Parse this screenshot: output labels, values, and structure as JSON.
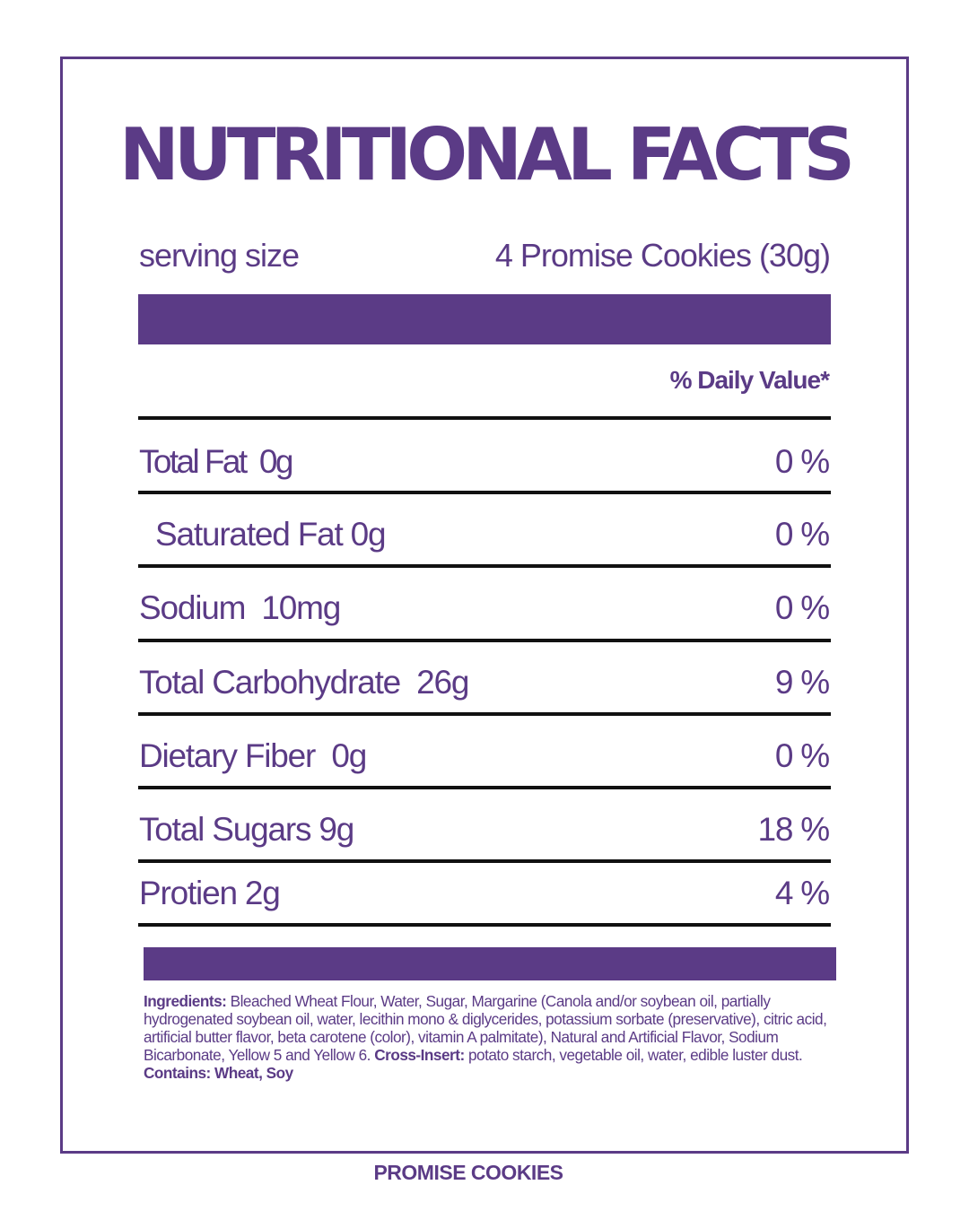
{
  "title": "NUTRITIONAL FACTS",
  "serving": {
    "label": "serving size",
    "value": "4 Promise Cookies (30g)"
  },
  "daily_value_header": "% Daily Value*",
  "nutrients": [
    {
      "name": "Total Fat  0g",
      "percent": "0 %"
    },
    {
      "name": "Saturated Fat 0g",
      "percent": "0 %"
    },
    {
      "name": "Sodium  10mg",
      "percent": "0 %"
    },
    {
      "name": "Total Carbohydrate  26g",
      "percent": "9 %"
    },
    {
      "name": "Dietary Fiber  0g",
      "percent": "0 %"
    },
    {
      "name": "Total Sugars 9g",
      "percent": "18 %"
    },
    {
      "name": "Protien 2g",
      "percent": "4 %"
    }
  ],
  "ingredients": {
    "label": "Ingredients:",
    "text": " Bleached Wheat Flour, Water, Sugar, Margarine (Canola and/or soybean oil, partially hydrogenated soybean oil, water, lecithin mono & diglycerides, potassium sorbate (preservative), citric acid, artificial butter flavor, beta carotene (color), vitamin A palmitate), Natural and Artificial Flavor, Sodium Bicarbonate, Yellow 5 and Yellow 6. ",
    "cross_insert_label": "Cross-Insert:",
    "cross_insert_text": " potato starch, vegetable oil, water, edible luster dust.",
    "contains": "Contains: Wheat, Soy"
  },
  "brand": "PROMISE COOKIES",
  "colors": {
    "accent": "#5b3b86",
    "rule": "#111111",
    "background": "#ffffff"
  }
}
